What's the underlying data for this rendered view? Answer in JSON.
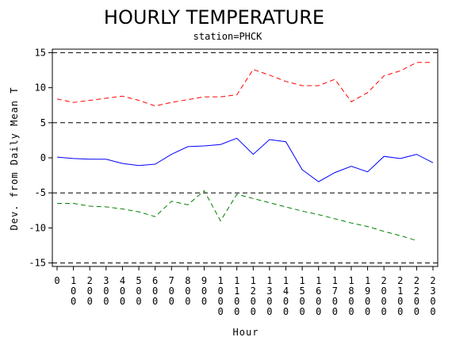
{
  "chart_data": {
    "type": "line",
    "title": "HOURLY TEMPERATURE",
    "subtitle": "station=PHCK",
    "xlabel": "Hour",
    "ylabel": "Dev. from Daily Mean T",
    "xlim": [
      0,
      23
    ],
    "ylim": [
      -15.5,
      15.5
    ],
    "x_tick_labels": [
      "0",
      "100",
      "200",
      "300",
      "400",
      "500",
      "600",
      "700",
      "800",
      "900",
      "1000",
      "1100",
      "1200",
      "1300",
      "1400",
      "1500",
      "1600",
      "1700",
      "1800",
      "1900",
      "2000",
      "2100",
      "2200",
      "2300"
    ],
    "y_ticks": [
      -15,
      -10,
      -5,
      0,
      5,
      10,
      15
    ],
    "reference_lines": [
      -15,
      -5,
      5,
      15
    ],
    "reference_line_color": "#000000",
    "x": [
      0,
      1,
      2,
      3,
      4,
      5,
      6,
      7,
      8,
      9,
      10,
      11,
      12,
      13,
      14,
      15,
      16,
      17,
      18,
      19,
      20,
      21,
      22,
      23
    ],
    "series": [
      {
        "color": "#ff0000",
        "dash": "dashed",
        "values": [
          8.4,
          7.9,
          8.2,
          8.5,
          8.8,
          8.2,
          7.4,
          7.9,
          8.3,
          8.7,
          8.7,
          9.0,
          12.6,
          11.8,
          10.9,
          10.3,
          10.3,
          11.2,
          8.0,
          9.3,
          11.7,
          12.4,
          13.6,
          13.6
        ]
      },
      {
        "color": "#0000ff",
        "dash": "solid",
        "values": [
          0.1,
          -0.1,
          -0.2,
          -0.2,
          -0.8,
          -1.1,
          -0.9,
          0.5,
          1.6,
          1.7,
          1.9,
          2.8,
          0.5,
          2.6,
          2.3,
          -1.7,
          -3.4,
          -2.1,
          -1.2,
          -2.0,
          0.2,
          -0.1,
          0.5,
          -0.7
        ]
      },
      {
        "color": "#008000",
        "dash": "dashed",
        "values": [
          -6.5,
          -6.5,
          -6.9,
          -7.0,
          -7.3,
          -7.7,
          -8.4,
          -6.2,
          -6.7,
          -4.7,
          -9.0,
          -5.2,
          -5.8,
          -6.4,
          -7.0,
          -7.6,
          -8.1,
          -8.7,
          -9.3,
          -9.8,
          -10.5,
          -11.1,
          -11.8,
          null
        ]
      }
    ]
  }
}
